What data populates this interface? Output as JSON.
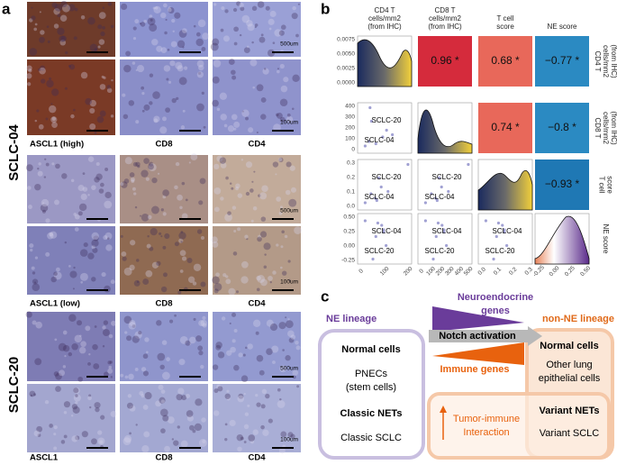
{
  "panel_a": {
    "label": "a",
    "samples": [
      {
        "name": "SCLC-04",
        "rows": [
          {
            "labels": [
              "ASCL1 (high)",
              "CD8",
              "CD4"
            ],
            "scale_bars": [
              "500um",
              "100um"
            ]
          },
          {
            "labels": [
              "ASCL1 (low)",
              "CD8",
              "CD4"
            ],
            "scale_bars": [
              "500um",
              "100um"
            ]
          }
        ]
      },
      {
        "name": "SCLC-20",
        "rows": [
          {
            "labels": [
              "ASCL1",
              "CD8",
              "CD4"
            ],
            "scale_bars": [
              "500um",
              "100um"
            ]
          }
        ]
      }
    ]
  },
  "panel_b": {
    "label": "b",
    "variables": [
      [
        "CD4 T",
        "cells/mm2",
        "(from IHC)"
      ],
      [
        "CD8 T",
        "cells/mm2",
        "(from IHC)"
      ],
      [
        "T cell",
        "score"
      ],
      [
        "NE score"
      ]
    ],
    "correlations": [
      "0.96 *",
      "0.68 *",
      "−0.77 *",
      "0.74 *",
      "−0.8 *",
      "−0.93 *"
    ],
    "y_ticks": [
      [
        "0.0075",
        "0.0050",
        "0.0025",
        "0.0000"
      ],
      [
        "400",
        "300",
        "200",
        "100",
        "0"
      ],
      [
        "0.3",
        "0.2",
        "0.1",
        "0.0"
      ],
      [
        "0.50",
        "0.25",
        "0.00",
        "-0.25"
      ]
    ],
    "x_ticks": [
      [
        "0",
        "100",
        "200"
      ],
      [
        "0",
        "100",
        "200",
        "300",
        "400",
        "500"
      ],
      [
        "0.0",
        "0.1",
        "0.2",
        "0.3"
      ],
      [
        "-0.25",
        "0.00",
        "0.25",
        "0.50"
      ]
    ],
    "point_labels": [
      "SCLC-20",
      "SCLC-04"
    ]
  },
  "panel_c": {
    "label": "c",
    "left": {
      "title": "NE lineage",
      "normal": "Normal cells",
      "normal_desc": [
        "PNECs",
        "(stem cells)"
      ],
      "tumor": "Classic NETs",
      "tumor_desc": "Classic SCLC"
    },
    "right": {
      "title": "non-NE lineage",
      "normal": "Normal cells",
      "normal_desc": [
        "Other lung",
        "epithelial cells"
      ],
      "tumor": "Variant NETs",
      "tumor_desc": "Variant SCLC"
    },
    "top_arrow": [
      "Neuroendocrine",
      "genes"
    ],
    "middle_arrow": "Notch activation",
    "bottom_arrow": "Immune genes",
    "interaction": [
      "Tumor-immune",
      "Interaction"
    ]
  }
}
